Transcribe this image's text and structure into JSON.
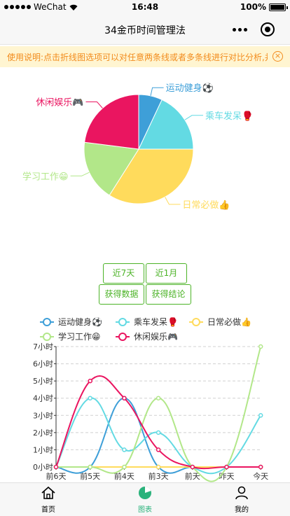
{
  "status_bar": {
    "carrier": "WeChat",
    "time": "16:48",
    "battery": "100%"
  },
  "nav": {
    "title": "34金币时间管理法"
  },
  "notice": {
    "text": "使用说明:点击折线图选项可以对任意两条线或者多条线进行对比分析,并",
    "close_glyph": "×"
  },
  "colors": {
    "accent": "#4cb327",
    "tab_active": "#2ab27b",
    "notice_text": "#f28b1c",
    "notice_bg": "#fff5d1"
  },
  "categories": [
    {
      "name": "运动健身⚽",
      "color": "#3e9fd8"
    },
    {
      "name": "乘车发呆🥊",
      "color": "#63dae3"
    },
    {
      "name": "日常必做👍",
      "color": "#ffdb5c"
    },
    {
      "name": "学习工作😁",
      "color": "#b2e789"
    },
    {
      "name": "休闲娱乐🎮",
      "color": "#ea1560"
    }
  ],
  "buttons": {
    "last7": "近7天",
    "last1m": "近1月",
    "get_data": "获得数据",
    "get_conclusion": "获得结论"
  },
  "chart_data": [
    {
      "type": "pie",
      "labels": [
        "运动健身⚽",
        "乘车发呆🥊",
        "日常必做👍",
        "学习工作😁",
        "休闲娱乐🎮"
      ],
      "values": [
        3.5,
        9,
        17,
        9,
        11.5
      ],
      "colors": [
        "#3e9fd8",
        "#63dae3",
        "#ffdb5c",
        "#b2e789",
        "#ea1560"
      ]
    },
    {
      "type": "line",
      "categories": [
        "前6天",
        "前5天",
        "前4天",
        "前3天",
        "前天",
        "昨天",
        "今天"
      ],
      "series": [
        {
          "name": "运动健身⚽",
          "color": "#3e9fd8",
          "values": [
            0,
            0,
            4,
            0,
            0,
            0,
            0
          ]
        },
        {
          "name": "乘车发呆🥊",
          "color": "#63dae3",
          "values": [
            0,
            4,
            1,
            2,
            0,
            0,
            3
          ]
        },
        {
          "name": "日常必做👍",
          "color": "#ffdb5c",
          "values": [
            0,
            0,
            0,
            0,
            0,
            0,
            0
          ]
        },
        {
          "name": "学习工作😁",
          "color": "#b2e789",
          "values": [
            0,
            0,
            0,
            4,
            0,
            0,
            7
          ]
        },
        {
          "name": "休闲娱乐🎮",
          "color": "#ea1560",
          "values": [
            0,
            5,
            4,
            1,
            0,
            0,
            0
          ]
        }
      ],
      "y_ticks": [
        "0小时",
        "1小时",
        "2小时",
        "3小时",
        "4小时",
        "5小时",
        "6小时",
        "7小时"
      ],
      "ylim": [
        0,
        7
      ],
      "grid": true,
      "smooth": true,
      "legend_position": "top"
    }
  ],
  "tabs": [
    {
      "label": "首页",
      "icon": "home-icon",
      "active": false
    },
    {
      "label": "图表",
      "icon": "pie-chart-icon",
      "active": true
    },
    {
      "label": "我的",
      "icon": "person-icon",
      "active": false
    }
  ]
}
